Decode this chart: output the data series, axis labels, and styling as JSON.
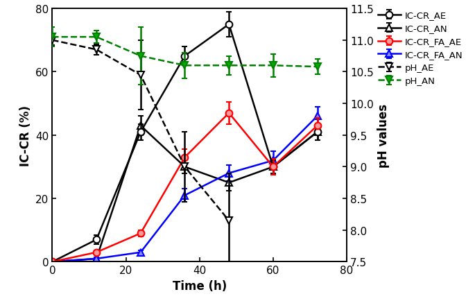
{
  "time": [
    0,
    12,
    24,
    36,
    48,
    60,
    72
  ],
  "ic_cr_ae": [
    0,
    7,
    41,
    65,
    75,
    30,
    41
  ],
  "ic_cr_ae_err": [
    0,
    1.5,
    2.5,
    3.0,
    4.0,
    2.0,
    2.5
  ],
  "ic_cr_an": [
    0,
    1,
    43,
    30,
    25,
    30,
    41
  ],
  "ic_cr_an_err": [
    0,
    0.5,
    3.0,
    2.0,
    2.5,
    2.0,
    2.5
  ],
  "ic_cr_fa_ae": [
    0,
    3,
    9,
    33,
    47,
    30,
    43
  ],
  "ic_cr_fa_ae_err": [
    0,
    0.5,
    1.0,
    2.5,
    3.5,
    2.5,
    2.5
  ],
  "ic_cr_fa_an": [
    0,
    1,
    3,
    21,
    28,
    32,
    46
  ],
  "ic_cr_fa_an_err": [
    0,
    0.5,
    0.5,
    2.0,
    2.5,
    3.0,
    3.0
  ],
  "ph_ae_time": [
    0,
    12,
    24,
    36,
    48
  ],
  "ph_ae": [
    11.0,
    10.85,
    10.45,
    9.0,
    8.15
  ],
  "ph_ae_err": [
    0.08,
    0.08,
    0.55,
    0.55,
    0.75
  ],
  "ph_an_time": [
    0,
    12,
    24,
    36,
    48,
    60,
    72
  ],
  "ph_an": [
    11.05,
    11.05,
    10.75,
    10.6,
    10.6,
    10.6,
    10.58
  ],
  "ph_an_err": [
    0.15,
    0.1,
    0.45,
    0.2,
    0.15,
    0.18,
    0.12
  ],
  "xlim": [
    0,
    80
  ],
  "ylim_left": [
    0,
    80
  ],
  "ylim_right": [
    7.5,
    11.5
  ],
  "xlabel": "Time (h)",
  "ylabel_left": "IC-CR (%)",
  "ylabel_right": "pH values",
  "legend_labels": [
    "IC-CR_AE",
    "IC-CR_AN",
    "IC-CR_FA_AE",
    "IC-CR_FA_AN",
    "pH_AE",
    "pH_AN"
  ],
  "color_ae": "#000000",
  "color_an": "#000000",
  "color_fa_ae": "#ff0000",
  "color_fa_an": "#0000ff",
  "color_ph_ae": "#000000",
  "color_ph_an": "#008000",
  "xticks": [
    0,
    20,
    40,
    60,
    80
  ],
  "yticks_left": [
    0,
    20,
    40,
    60,
    80
  ],
  "yticks_right": [
    7.5,
    8.0,
    8.5,
    9.0,
    9.5,
    10.0,
    10.5,
    11.0,
    11.5
  ]
}
